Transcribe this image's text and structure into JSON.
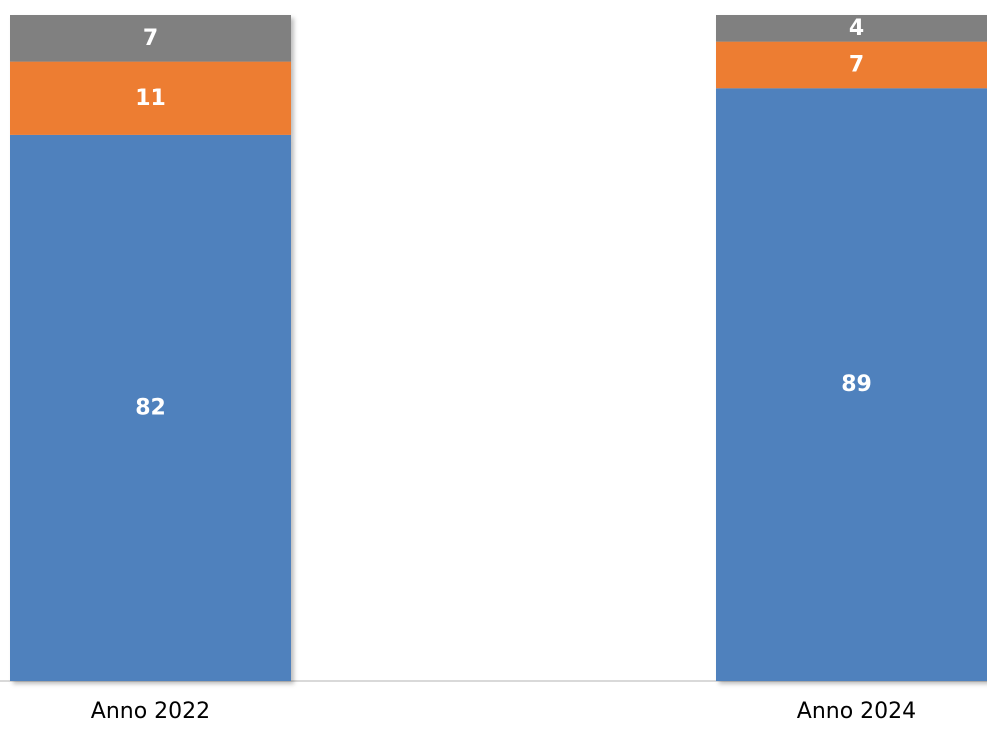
{
  "chart_data": {
    "type": "bar",
    "stacked": true,
    "categories": [
      "Anno 2022",
      "Anno 2024"
    ],
    "series": [
      {
        "values": [
          82,
          89
        ],
        "color": "#4F81BD"
      },
      {
        "values": [
          11,
          7
        ],
        "color": "#ED7D31"
      },
      {
        "values": [
          7,
          4
        ],
        "color": "#808080"
      }
    ],
    "ylim": [
      0,
      100
    ],
    "grid": false,
    "legend": "none",
    "axis_color": "#D9D9D9",
    "label_color": "#FFFFFF"
  }
}
